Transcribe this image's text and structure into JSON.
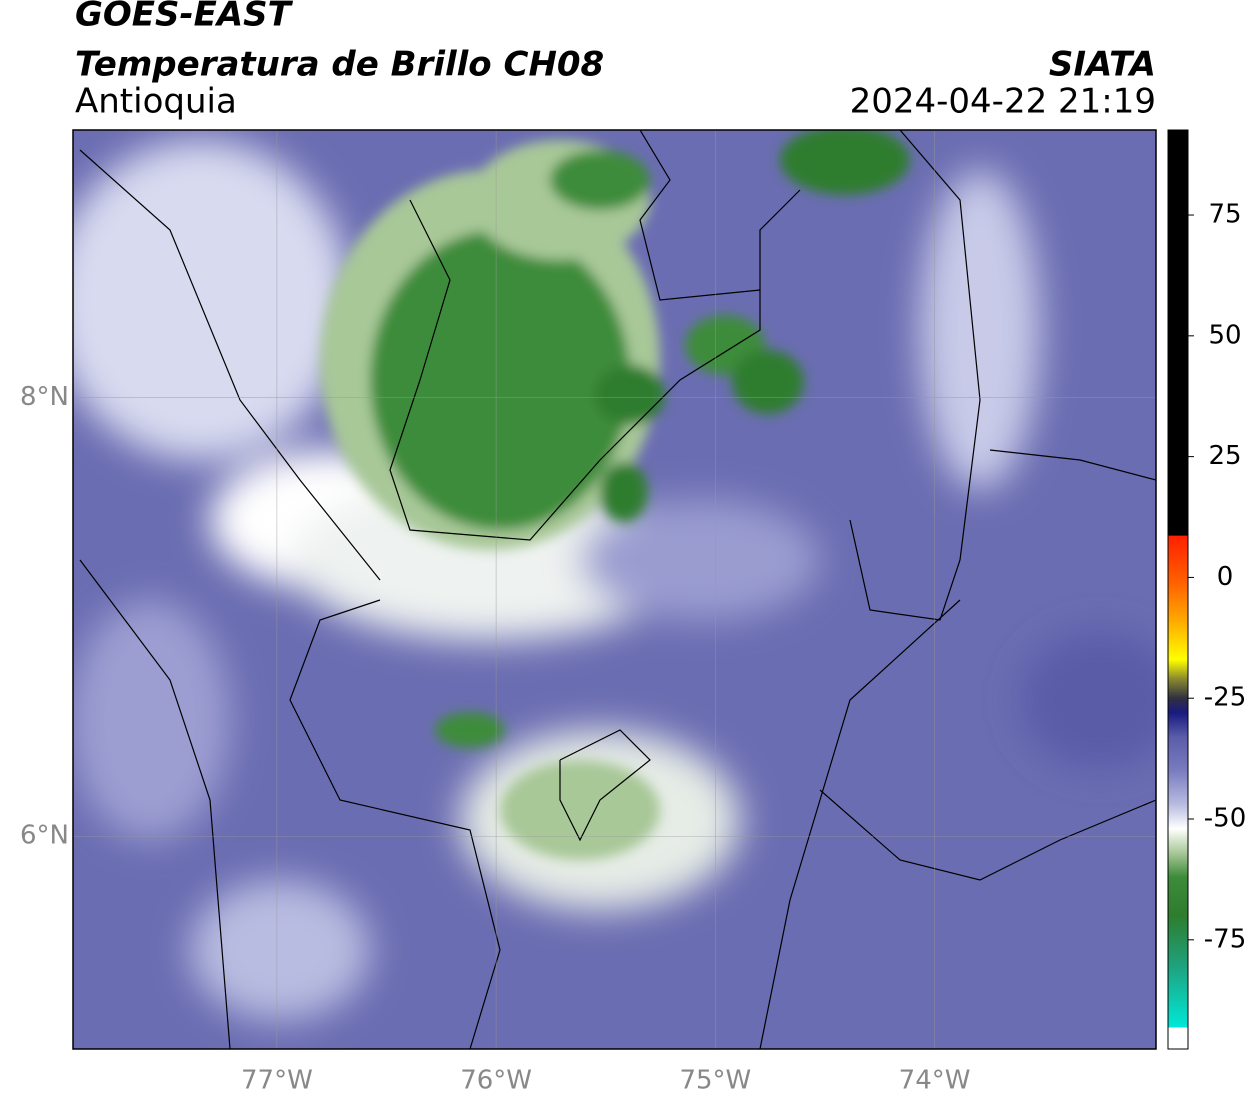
{
  "header": {
    "title": "GOES-EAST",
    "subtitle": "Temperatura de Brillo CH08",
    "region": "Antioquia",
    "agency": "SIATA",
    "timestamp": "2024-04-22 21:19"
  },
  "map": {
    "xlim": [
      -77.93,
      -72.99
    ],
    "ylim": [
      5.03,
      9.22
    ],
    "xticks": [
      {
        "value": -77,
        "label": "77°W"
      },
      {
        "value": -76,
        "label": "76°W"
      },
      {
        "value": -75,
        "label": "75°W"
      },
      {
        "value": -74,
        "label": "74°W"
      }
    ],
    "yticks": [
      {
        "value": 6,
        "label": "6°N"
      },
      {
        "value": 8,
        "label": "8°N"
      }
    ],
    "grid": true
  },
  "colorbar": {
    "lim": [
      -97.6,
      92.6
    ],
    "ticks": [
      -75,
      -50,
      -25,
      0,
      25,
      50,
      75
    ],
    "stops": [
      {
        "value": -97.6,
        "color": "#ffffff"
      },
      {
        "value": -93.2,
        "color": "#ffffff"
      },
      {
        "value": -93.1,
        "color": "#00e8d8"
      },
      {
        "value": -80,
        "color": "#1fa07a"
      },
      {
        "value": -70,
        "color": "#2e7d2e"
      },
      {
        "value": -62,
        "color": "#3d8c3a"
      },
      {
        "value": -57,
        "color": "#a8c898"
      },
      {
        "value": -52,
        "color": "#ffffff"
      },
      {
        "value": -47,
        "color": "#b8bce0"
      },
      {
        "value": -40,
        "color": "#7a7cc0"
      },
      {
        "value": -33,
        "color": "#5a5ca8"
      },
      {
        "value": -28,
        "color": "#1a1a80"
      },
      {
        "value": -25,
        "color": "#303040"
      },
      {
        "value": -21,
        "color": "#8a8a30"
      },
      {
        "value": -17,
        "color": "#ffff00"
      },
      {
        "value": -9,
        "color": "#ffaa00"
      },
      {
        "value": -1,
        "color": "#ff6000"
      },
      {
        "value": 8.6,
        "color": "#ff2000"
      },
      {
        "value": 8.7,
        "color": "#000000"
      },
      {
        "value": 92.6,
        "color": "#000000"
      }
    ]
  }
}
